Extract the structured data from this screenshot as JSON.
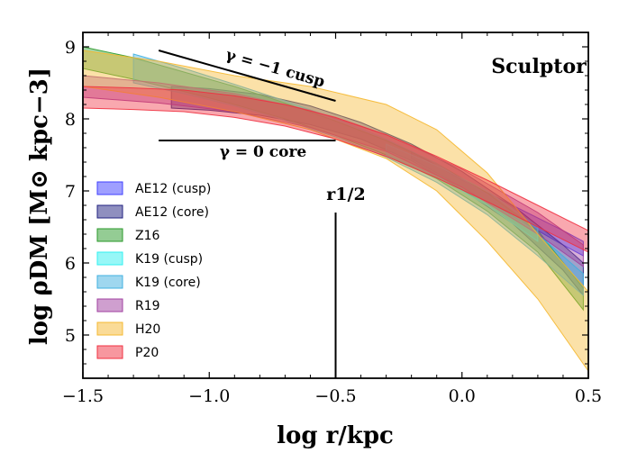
{
  "chart_data": {
    "type": "area",
    "title": "Sculptor",
    "xlabel": "log r/kpc",
    "ylabel": "log ρDM [M⊙ kpc−3]",
    "xlim": [
      -1.5,
      0.5
    ],
    "ylim": [
      4.4,
      9.2
    ],
    "xticks": [
      -1.5,
      -1.0,
      -0.5,
      0.0,
      0.5
    ],
    "xtick_labels": [
      "−1.5",
      "−1.0",
      "−0.5",
      "0.0",
      "0.5"
    ],
    "yticks": [
      5,
      6,
      7,
      8,
      9
    ],
    "ytick_labels": [
      "5",
      "6",
      "7",
      "8",
      "9"
    ],
    "legend_position": "left",
    "series": [
      {
        "name": "AE12 (cusp)",
        "color": "#4040ff",
        "x": [
          -0.2,
          0.0,
          0.2,
          0.4,
          0.48
        ],
        "y_low": [
          7.45,
          7.05,
          6.65,
          6.25,
          6.1
        ],
        "y_high": [
          7.55,
          7.15,
          6.8,
          6.45,
          6.3
        ]
      },
      {
        "name": "AE12 (core)",
        "color": "#202080",
        "x": [
          -1.15,
          -1.0,
          -0.8,
          -0.6,
          -0.4,
          -0.2,
          0.0,
          0.2,
          0.4,
          0.48
        ],
        "y_low": [
          8.15,
          8.12,
          8.05,
          7.92,
          7.72,
          7.42,
          7.02,
          6.55,
          5.9,
          5.55
        ],
        "y_high": [
          8.45,
          8.42,
          8.34,
          8.18,
          7.95,
          7.65,
          7.27,
          6.8,
          6.25,
          6.0
        ]
      },
      {
        "name": "Z16",
        "color": "#2a9a2a",
        "x": [
          -1.5,
          -1.3,
          -1.1,
          -0.9,
          -0.7,
          -0.5,
          -0.3,
          -0.1,
          0.1,
          0.3,
          0.48
        ],
        "y_low": [
          8.7,
          8.55,
          8.38,
          8.2,
          8.0,
          7.77,
          7.5,
          7.17,
          6.72,
          6.15,
          5.35
        ],
        "y_high": [
          9.0,
          8.85,
          8.65,
          8.45,
          8.22,
          7.97,
          7.7,
          7.38,
          6.97,
          6.45,
          5.65
        ]
      },
      {
        "name": "K19 (cusp)",
        "color": "#30f0f0",
        "x": [
          -0.3,
          -0.1,
          0.1,
          0.3
        ],
        "y_low": [
          7.5,
          7.2,
          6.8,
          6.3
        ],
        "y_high": [
          7.65,
          7.35,
          7.0,
          6.5
        ]
      },
      {
        "name": "K19 (core)",
        "color": "#40b0e0",
        "x": [
          -1.3,
          -1.1,
          -0.9,
          -0.7,
          -0.5,
          -0.3,
          -0.1,
          0.1,
          0.3,
          0.48
        ],
        "y_low": [
          8.5,
          8.35,
          8.18,
          7.98,
          7.75,
          7.47,
          7.12,
          6.67,
          6.1,
          5.55
        ],
        "y_high": [
          8.9,
          8.7,
          8.48,
          8.25,
          8.0,
          7.72,
          7.38,
          6.95,
          6.4,
          5.85
        ]
      },
      {
        "name": "R19",
        "color": "#a040a0",
        "x": [
          -1.5,
          -1.2,
          -0.9,
          -0.6,
          -0.3,
          0.0,
          0.3,
          0.48
        ],
        "y_low": [
          8.3,
          8.22,
          8.1,
          7.88,
          7.55,
          7.05,
          6.4,
          5.95
        ],
        "y_high": [
          8.6,
          8.5,
          8.35,
          8.12,
          7.78,
          7.3,
          6.7,
          6.25
        ]
      },
      {
        "name": "H20",
        "color": "#f5b830",
        "x": [
          -1.5,
          -1.2,
          -0.9,
          -0.6,
          -0.3,
          -0.1,
          0.1,
          0.3,
          0.5
        ],
        "y_low": [
          8.45,
          8.3,
          8.1,
          7.85,
          7.45,
          7.0,
          6.3,
          5.5,
          4.5
        ],
        "y_high": [
          8.95,
          8.8,
          8.6,
          8.45,
          8.2,
          7.85,
          7.25,
          6.4,
          5.6
        ]
      },
      {
        "name": "P20",
        "color": "#f03040",
        "x": [
          -1.5,
          -1.3,
          -1.1,
          -0.9,
          -0.7,
          -0.5,
          -0.3,
          -0.1,
          0.1,
          0.3,
          0.5
        ],
        "y_low": [
          8.15,
          8.13,
          8.1,
          8.02,
          7.9,
          7.72,
          7.48,
          7.18,
          6.85,
          6.5,
          6.15
        ],
        "y_high": [
          8.45,
          8.43,
          8.4,
          8.32,
          8.2,
          8.02,
          7.78,
          7.48,
          7.15,
          6.8,
          6.45
        ]
      }
    ],
    "annotations": {
      "cusp_label": "γ = −1 cusp",
      "core_label": "γ = 0 core",
      "rhalf_label": "r1/2",
      "cusp_line": {
        "x": [
          -1.2,
          -0.5
        ],
        "y": [
          8.95,
          8.25
        ]
      },
      "core_line": {
        "x": [
          -1.2,
          -0.5
        ],
        "y": [
          7.7,
          7.7
        ]
      },
      "rhalf_line": {
        "x": -0.5,
        "y": [
          4.4,
          6.7
        ]
      }
    }
  }
}
